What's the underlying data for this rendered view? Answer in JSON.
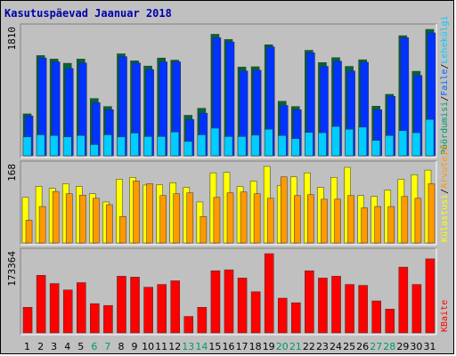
{
  "title": "Kasutuspäevad Jaanuar 2018",
  "chart_data": [
    {
      "type": "bar",
      "panel": "hits",
      "scale_label": "1810",
      "ylim": [
        0,
        1810
      ],
      "categories": [
        "1",
        "2",
        "3",
        "4",
        "5",
        "6",
        "7",
        "8",
        "9",
        "10",
        "11",
        "12",
        "13",
        "14",
        "15",
        "16",
        "17",
        "18",
        "19",
        "20",
        "21",
        "22",
        "23",
        "24",
        "25",
        "26",
        "27",
        "28",
        "29",
        "30",
        "31"
      ],
      "weekend_days": [
        "6",
        "7",
        "13",
        "14",
        "20",
        "21",
        "27",
        "28"
      ],
      "right_labels": [
        {
          "text": "Pöördumisi",
          "color": "#009966"
        },
        {
          "text": "Faile",
          "color": "#0066ff"
        },
        {
          "text": "Lehekülgi",
          "color": "#00ccff"
        }
      ],
      "series": [
        {
          "name": "Pöördumisi",
          "color": "#006633",
          "values": [
            600,
            1435,
            1385,
            1325,
            1385,
            820,
            705,
            1460,
            1360,
            1285,
            1400,
            1370,
            580,
            680,
            1740,
            1665,
            1270,
            1275,
            1590,
            780,
            705,
            1510,
            1335,
            1405,
            1280,
            1375,
            710,
            880,
            1720,
            1210,
            1810
          ]
        },
        {
          "name": "Faile",
          "color": "#0033ff",
          "values": [
            570,
            1400,
            1345,
            1250,
            1330,
            760,
            660,
            1420,
            1330,
            1235,
            1345,
            1345,
            520,
            610,
            1690,
            1630,
            1215,
            1225,
            1560,
            720,
            660,
            1475,
            1280,
            1355,
            1215,
            1340,
            660,
            850,
            1690,
            1150,
            1760
          ]
        },
        {
          "name": "Lehekülgi",
          "color": "#00ccff",
          "values": [
            270,
            300,
            290,
            270,
            290,
            160,
            300,
            270,
            325,
            275,
            275,
            340,
            205,
            300,
            395,
            275,
            275,
            295,
            380,
            290,
            245,
            335,
            330,
            420,
            380,
            410,
            220,
            290,
            360,
            330,
            520
          ]
        }
      ]
    },
    {
      "type": "bar",
      "panel": "visits",
      "scale_label": "168",
      "ylim": [
        0,
        168
      ],
      "right_labels": [
        {
          "text": "Külastusi",
          "color": "#ffff00"
        },
        {
          "text": "Arvuteid",
          "color": "#ff9900"
        }
      ],
      "series": [
        {
          "name": "Külastusi",
          "color": "#ffff00",
          "values": [
            100,
            124,
            120,
            130,
            124,
            108,
            90,
            140,
            144,
            127,
            128,
            132,
            122,
            90,
            154,
            155,
            124,
            136,
            168,
            126,
            145,
            154,
            122,
            144,
            166,
            104,
            102,
            116,
            140,
            150,
            160
          ]
        },
        {
          "name": "Arvuteid",
          "color": "#ff9900",
          "values": [
            50,
            80,
            113,
            108,
            105,
            98,
            84,
            58,
            136,
            130,
            104,
            108,
            110,
            58,
            100,
            110,
            112,
            108,
            98,
            145,
            104,
            106,
            96,
            96,
            104,
            77,
            80,
            80,
            102,
            98,
            130
          ]
        }
      ]
    },
    {
      "type": "bar",
      "panel": "kbytes",
      "scale_label": "173364",
      "ylim": [
        0,
        173364
      ],
      "right_labels": [
        {
          "text": "KBaite",
          "color": "#ff0000"
        }
      ],
      "series": [
        {
          "name": "KBaite",
          "color": "#ff0000",
          "values": [
            56000,
            126000,
            108000,
            94000,
            110000,
            64000,
            60000,
            124000,
            122000,
            100000,
            106000,
            114000,
            36000,
            56000,
            136000,
            138000,
            120000,
            90000,
            173364,
            76000,
            66000,
            136000,
            120000,
            124000,
            106000,
            104000,
            70000,
            52000,
            144000,
            106000,
            162000
          ]
        }
      ]
    }
  ]
}
